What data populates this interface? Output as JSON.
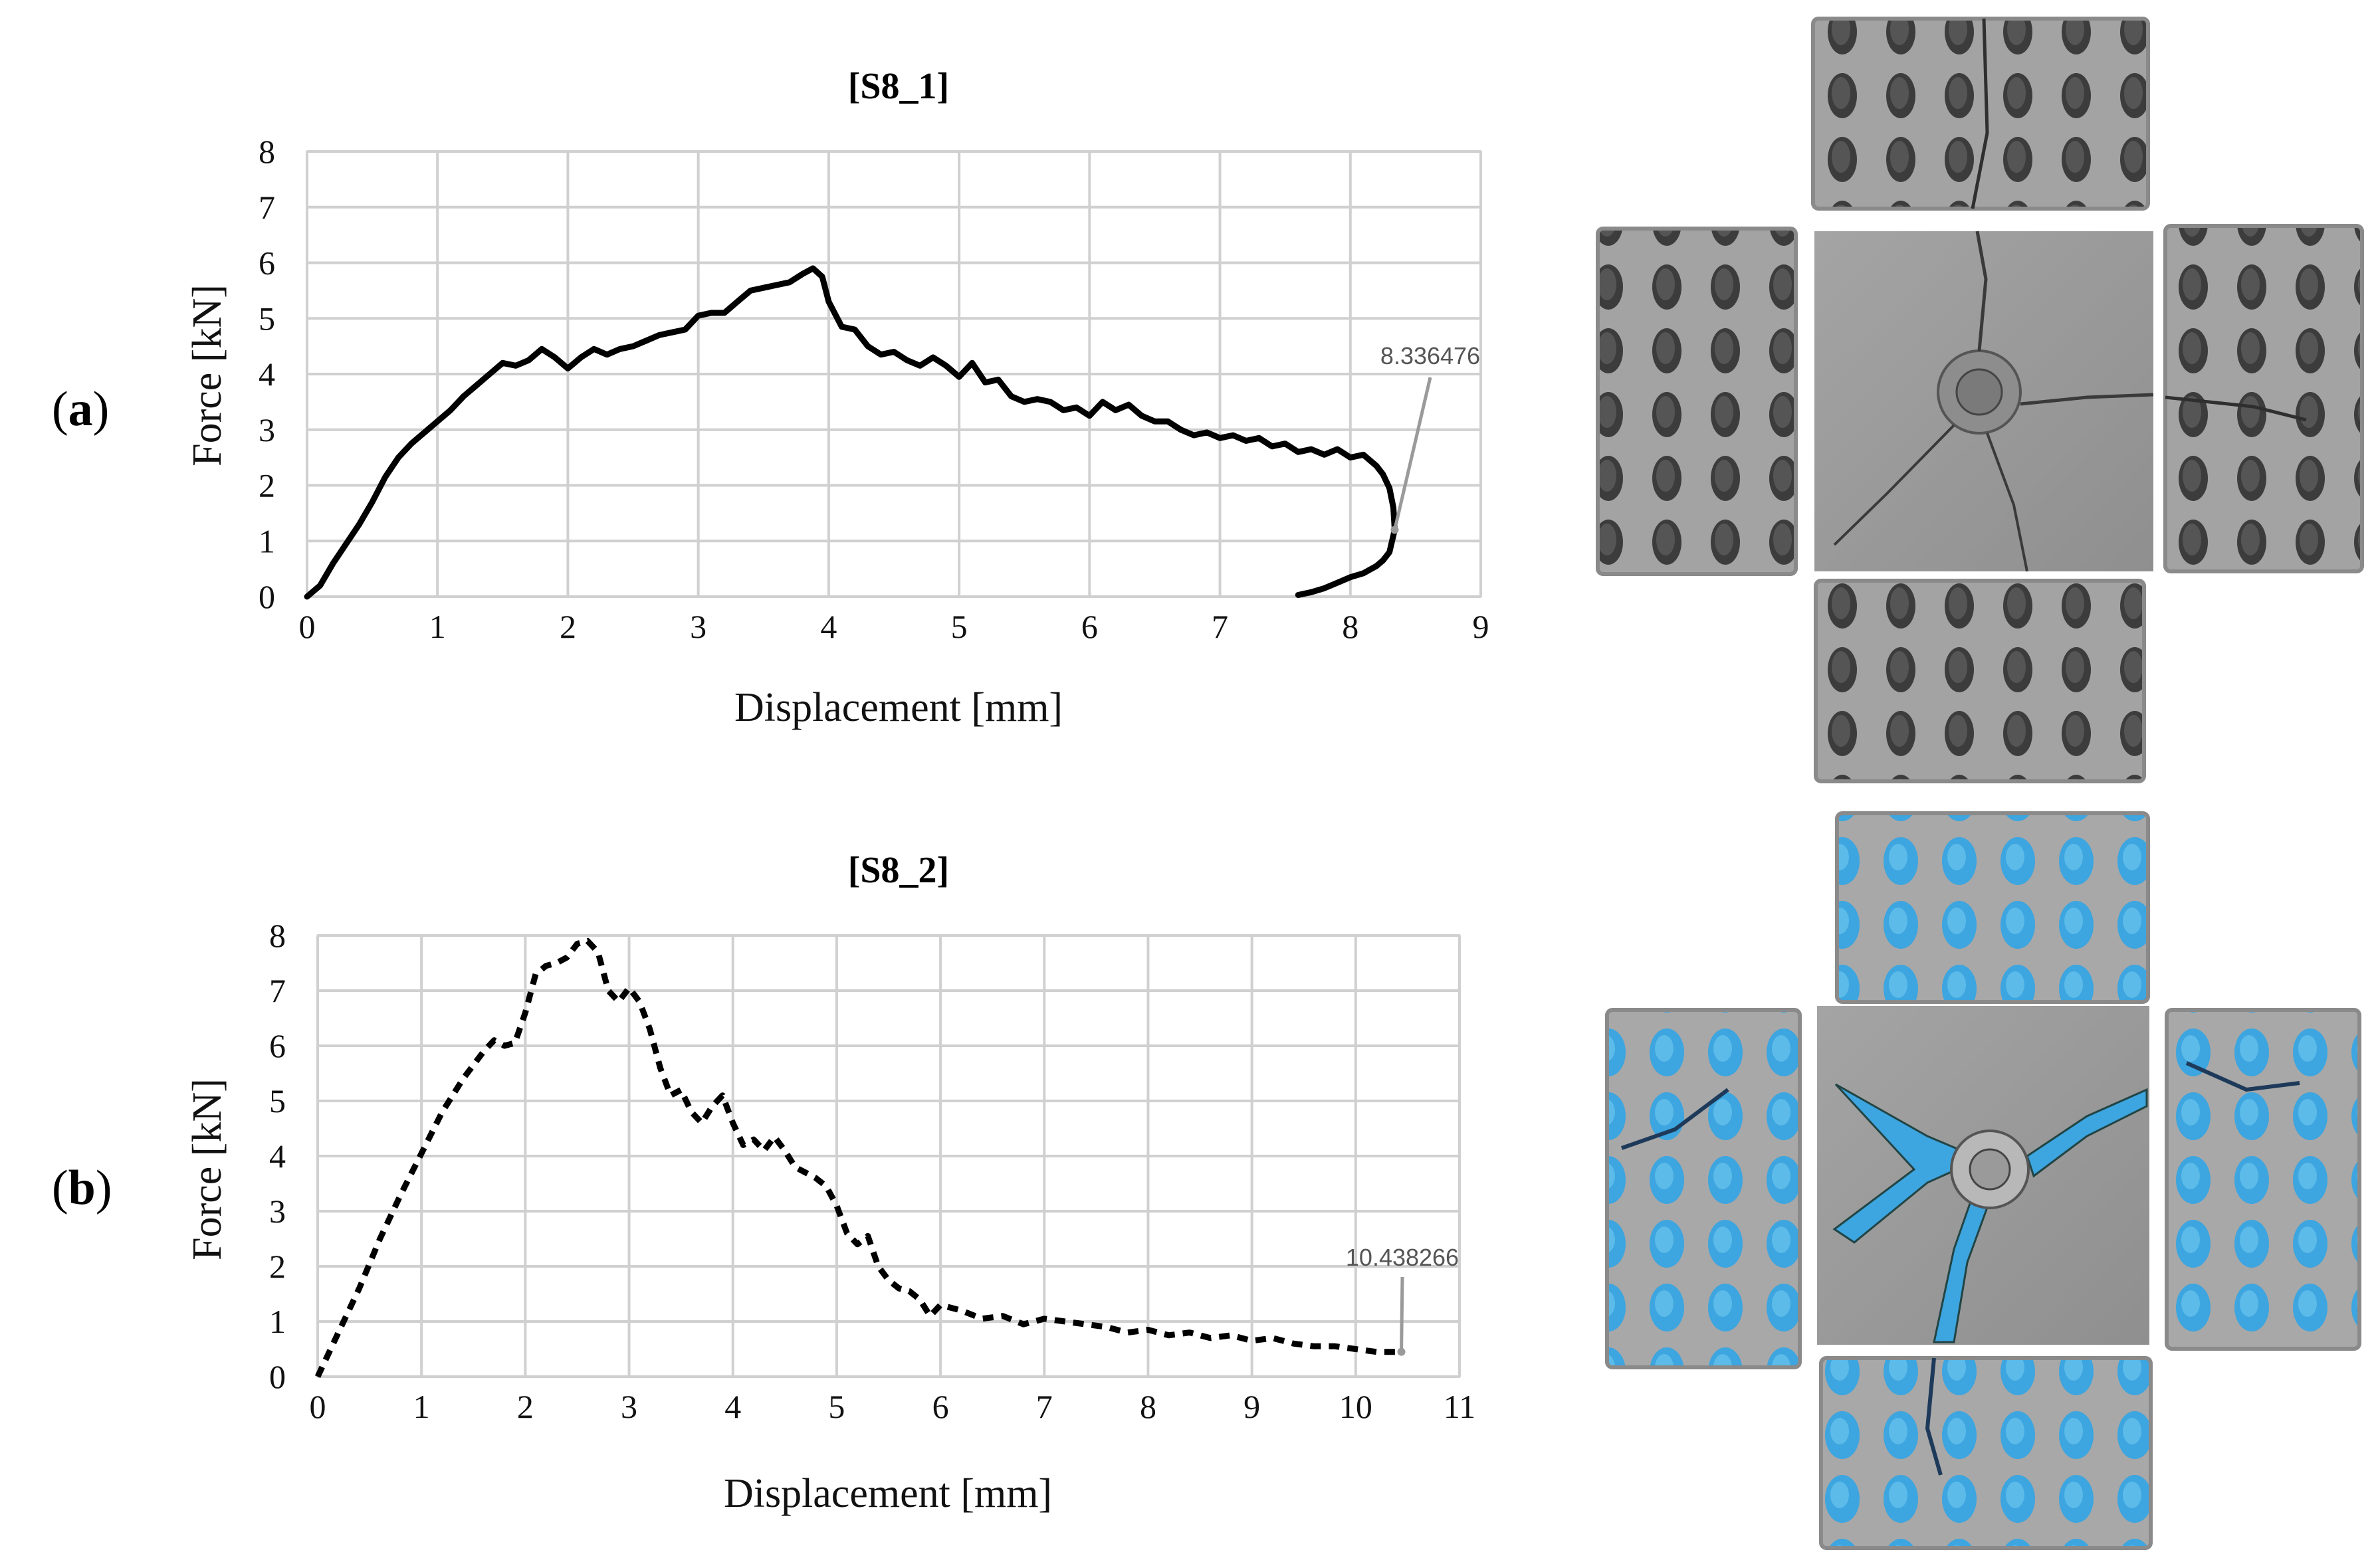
{
  "panels": [
    {
      "letter": "a",
      "open": "(",
      "close": ")"
    },
    {
      "letter": "b",
      "open": "(",
      "close": ")"
    }
  ],
  "chart_data": [
    {
      "type": "line",
      "title": "[S8_1]",
      "xlabel": "Displacement [mm]",
      "ylabel": "Force [kN]",
      "xlim": [
        0,
        9
      ],
      "ylim": [
        0,
        8
      ],
      "xticks": [
        0,
        1,
        2,
        3,
        4,
        5,
        6,
        7,
        8,
        9
      ],
      "yticks": [
        0,
        1,
        2,
        3,
        4,
        5,
        6,
        7,
        8
      ],
      "grid": true,
      "line_style": "solid",
      "line_color": "#000000",
      "annotation": {
        "label": "8.336476",
        "x": 8.34,
        "y": 1.2
      },
      "series": [
        {
          "x": [
            0,
            0.1,
            0.2,
            0.3,
            0.4,
            0.5,
            0.6,
            0.7,
            0.8,
            0.9,
            1.0,
            1.1,
            1.2,
            1.3,
            1.4,
            1.5,
            1.6,
            1.7,
            1.8,
            1.9,
            2.0,
            2.1,
            2.2,
            2.3,
            2.4,
            2.5,
            2.6,
            2.7,
            2.8,
            2.9,
            3.0,
            3.1,
            3.2,
            3.3,
            3.4,
            3.5,
            3.6,
            3.7,
            3.8,
            3.88,
            3.95,
            4.0,
            4.1,
            4.2,
            4.3,
            4.4,
            4.5,
            4.6,
            4.7,
            4.8,
            4.9,
            5.0,
            5.1,
            5.2,
            5.3,
            5.4,
            5.5,
            5.6,
            5.7,
            5.8,
            5.9,
            6.0,
            6.1,
            6.2,
            6.3,
            6.4,
            6.5,
            6.6,
            6.7,
            6.8,
            6.9,
            7.0,
            7.1,
            7.2,
            7.3,
            7.4,
            7.5,
            7.6,
            7.7,
            7.8,
            7.9,
            8.0,
            8.1,
            8.2,
            8.25,
            8.3,
            8.33,
            8.34,
            8.3,
            8.25,
            8.2,
            8.1,
            8.0,
            7.9,
            7.8,
            7.7,
            7.6
          ],
          "y": [
            0,
            0.2,
            0.6,
            0.95,
            1.3,
            1.7,
            2.15,
            2.5,
            2.75,
            2.95,
            3.15,
            3.35,
            3.6,
            3.8,
            4.0,
            4.2,
            4.15,
            4.25,
            4.45,
            4.3,
            4.1,
            4.3,
            4.45,
            4.35,
            4.45,
            4.5,
            4.6,
            4.7,
            4.75,
            4.8,
            5.05,
            5.1,
            5.1,
            5.3,
            5.5,
            5.55,
            5.6,
            5.65,
            5.8,
            5.9,
            5.75,
            5.3,
            4.85,
            4.8,
            4.5,
            4.35,
            4.4,
            4.25,
            4.15,
            4.3,
            4.15,
            3.95,
            4.2,
            3.85,
            3.9,
            3.6,
            3.5,
            3.55,
            3.5,
            3.35,
            3.4,
            3.25,
            3.5,
            3.35,
            3.45,
            3.25,
            3.15,
            3.15,
            3.0,
            2.9,
            2.95,
            2.85,
            2.9,
            2.8,
            2.85,
            2.7,
            2.75,
            2.6,
            2.65,
            2.55,
            2.65,
            2.5,
            2.55,
            2.35,
            2.2,
            1.95,
            1.6,
            1.2,
            0.8,
            0.65,
            0.55,
            0.42,
            0.35,
            0.25,
            0.15,
            0.08,
            0.03
          ]
        }
      ]
    },
    {
      "type": "line",
      "title": "[S8_2]",
      "xlabel": "Displacement [mm]",
      "ylabel": "Force [kN]",
      "xlim": [
        0,
        11
      ],
      "ylim": [
        0,
        8
      ],
      "xticks": [
        0,
        1,
        2,
        3,
        4,
        5,
        6,
        7,
        8,
        9,
        10,
        11
      ],
      "yticks": [
        0,
        1,
        2,
        3,
        4,
        5,
        6,
        7,
        8
      ],
      "grid": true,
      "line_style": "dashed",
      "line_color": "#000000",
      "annotation": {
        "label": "10.438266",
        "x": 10.44,
        "y": 0.45
      },
      "series": [
        {
          "x": [
            0,
            0.2,
            0.4,
            0.6,
            0.8,
            1.0,
            1.2,
            1.4,
            1.6,
            1.7,
            1.8,
            1.9,
            2.0,
            2.1,
            2.2,
            2.3,
            2.4,
            2.5,
            2.6,
            2.7,
            2.8,
            2.9,
            3.0,
            3.1,
            3.2,
            3.3,
            3.4,
            3.5,
            3.6,
            3.7,
            3.8,
            3.9,
            4.0,
            4.1,
            4.2,
            4.3,
            4.4,
            4.5,
            4.6,
            4.7,
            4.8,
            4.9,
            5.0,
            5.1,
            5.2,
            5.3,
            5.4,
            5.5,
            5.6,
            5.7,
            5.8,
            5.9,
            6.0,
            6.2,
            6.4,
            6.6,
            6.8,
            7.0,
            7.2,
            7.4,
            7.6,
            7.8,
            8.0,
            8.2,
            8.4,
            8.6,
            8.8,
            9.0,
            9.2,
            9.4,
            9.6,
            9.8,
            10.0,
            10.2,
            10.44
          ],
          "y": [
            0,
            0.8,
            1.6,
            2.5,
            3.3,
            4.05,
            4.8,
            5.4,
            5.9,
            6.1,
            6.0,
            6.05,
            6.6,
            7.3,
            7.45,
            7.5,
            7.6,
            7.85,
            7.9,
            7.7,
            7.0,
            6.8,
            7.05,
            6.8,
            6.3,
            5.6,
            5.1,
            5.2,
            4.8,
            4.6,
            4.9,
            5.1,
            4.6,
            4.2,
            4.3,
            4.1,
            4.35,
            4.1,
            3.8,
            3.7,
            3.6,
            3.45,
            3.1,
            2.6,
            2.4,
            2.55,
            2.0,
            1.75,
            1.6,
            1.55,
            1.4,
            1.1,
            1.3,
            1.2,
            1.05,
            1.1,
            0.95,
            1.05,
            1.0,
            0.95,
            0.9,
            0.8,
            0.85,
            0.75,
            0.8,
            0.7,
            0.75,
            0.65,
            0.7,
            0.6,
            0.55,
            0.55,
            0.5,
            0.45,
            0.45
          ]
        }
      ]
    }
  ],
  "photos": [
    {
      "label": "S8_1 specimen",
      "main_color": "#9b9b9b",
      "hole_color": "#2a2a2a"
    },
    {
      "label": "S8_2 specimen",
      "main_color": "#9b9b9b",
      "hole_color": "#3aa0d8"
    }
  ]
}
